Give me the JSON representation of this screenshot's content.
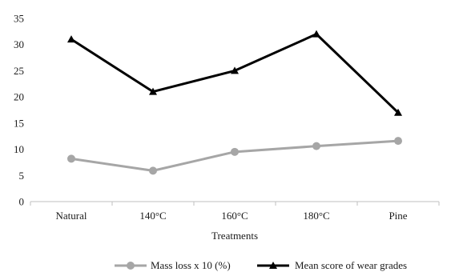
{
  "chart_data": {
    "type": "line",
    "categories": [
      "Natural",
      "140°C",
      "160°C",
      "180°C",
      "Pine"
    ],
    "series": [
      {
        "name": "Mass loss x 10 (%)",
        "values": [
          8.2,
          5.9,
          9.5,
          10.6,
          11.6
        ],
        "color": "#a6a6a6",
        "marker": "circle"
      },
      {
        "name": "Mean score of wear grades",
        "values": [
          31,
          21,
          25,
          32,
          17
        ],
        "color": "#000000",
        "marker": "triangle"
      }
    ],
    "title": "",
    "xlabel": "Treatments",
    "ylabel": "",
    "ylim": [
      0,
      35
    ],
    "yticks": [
      0,
      5,
      10,
      15,
      20,
      25,
      30,
      35
    ],
    "grid": false,
    "legend": "bottom"
  }
}
